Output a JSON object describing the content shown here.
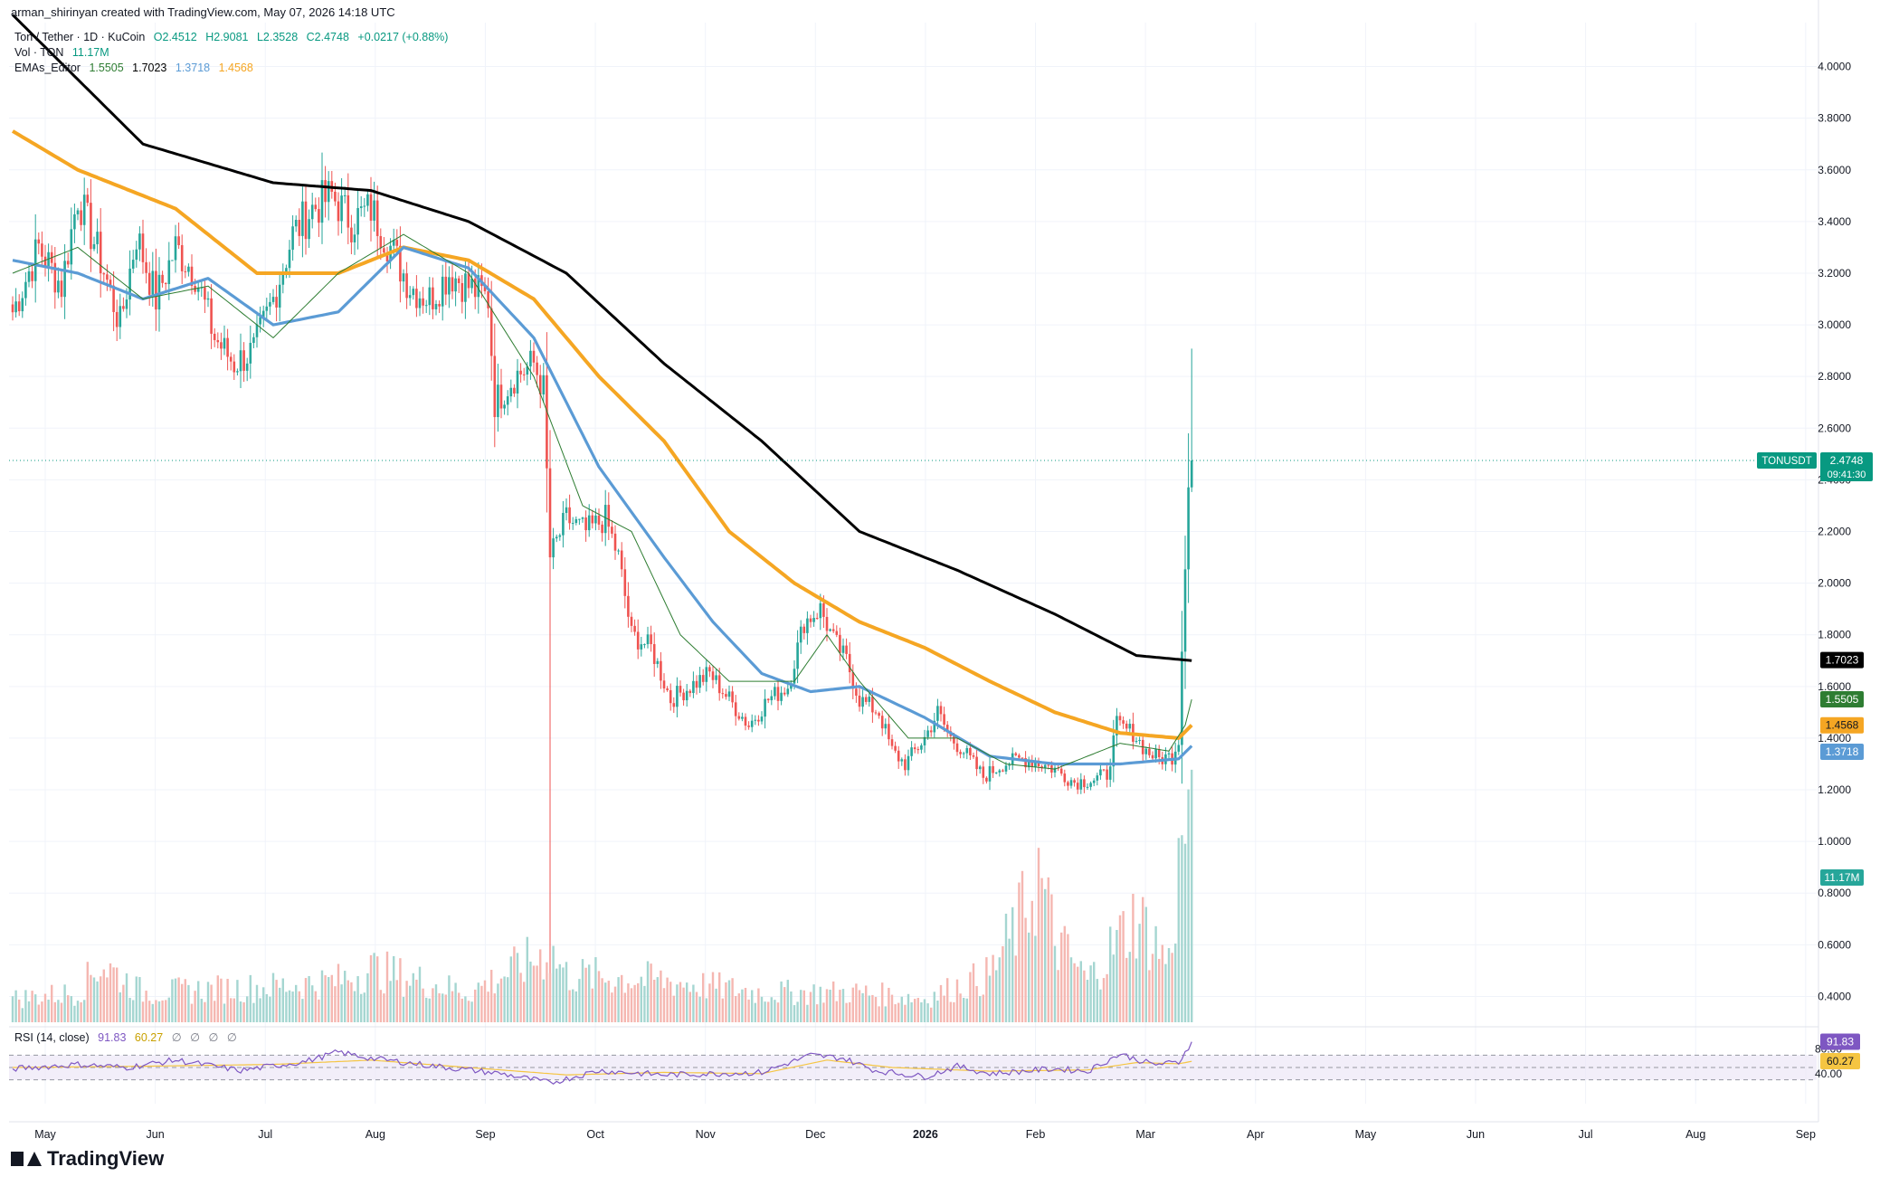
{
  "header": {
    "credit": "arman_shirinyan created with TradingView.com, May 07, 2026 14:18 UTC"
  },
  "legend": {
    "symbol": "Ton / Tether · 1D · KuCoin",
    "ohlc": {
      "o": "O2.4512",
      "h": "H2.9081",
      "l": "L2.3528",
      "c": "C2.4748",
      "chg": "+0.0217 (+0.88%)"
    },
    "vol_label": "Vol · TON",
    "vol_value": "11.17M",
    "emas_label": "EMAs_Editor",
    "ema_values": [
      "1.5505",
      "1.7023",
      "1.3718",
      "1.4568"
    ]
  },
  "rsi_legend": {
    "label": "RSI (14, close)",
    "value": "91.83",
    "ma_value": "60.27",
    "placeholders": [
      "∅",
      "∅",
      "∅",
      "∅"
    ]
  },
  "brand": "TradingView",
  "colors": {
    "up": "#26a69a",
    "down": "#ef5350",
    "ema_fast": "#2e7d32",
    "ema_mid": "#5b9bd5",
    "ema_slow": "#f5a623",
    "ema_long": "#000000",
    "rsi": "#7e57c2",
    "rsi_ma": "#f5c542",
    "vol_up": "#a5d6d1",
    "vol_down": "#f5b7b1"
  },
  "chart_data": {
    "type": "candlestick",
    "title": "Ton / Tether · 1D · KuCoin",
    "yaxis": {
      "ticks": [
        "4.0000",
        "3.8000",
        "3.6000",
        "3.4000",
        "3.2000",
        "3.0000",
        "2.8000",
        "2.6000",
        "2.4000",
        "2.2000",
        "2.0000",
        "1.8000",
        "1.6000",
        "1.4000",
        "1.2000",
        "1.0000",
        "0.8000",
        "0.6000",
        "0.4000"
      ],
      "range": [
        0.3,
        4.1
      ]
    },
    "xaxis": {
      "ticks": [
        "May",
        "Jun",
        "Jul",
        "Aug",
        "Sep",
        "Oct",
        "Nov",
        "Dec",
        "2026",
        "Feb",
        "Mar",
        "Apr",
        "May",
        "Jun",
        "Jul",
        "Aug",
        "Sep"
      ]
    },
    "price_markers": [
      {
        "label": "TONUSDT",
        "value": "2.4748",
        "sub": "09:41:30",
        "color": "#089981"
      },
      {
        "value": "1.7023",
        "color": "#000000"
      },
      {
        "value": "1.5505",
        "color": "#2e7d32"
      },
      {
        "value": "1.4568",
        "color": "#f5a623"
      },
      {
        "value": "1.3718",
        "color": "#5b9bd5"
      },
      {
        "value": "11.17M",
        "color": "#26a69a"
      }
    ],
    "rsi_axis": {
      "ticks": [
        "80.00",
        "40.00"
      ],
      "markers": [
        {
          "value": "91.83",
          "color": "#7e57c2"
        },
        {
          "value": "60.27",
          "color": "#f5c542"
        }
      ],
      "bands": [
        70,
        50,
        30
      ]
    },
    "price_anchors": [
      [
        0,
        3.05
      ],
      [
        8,
        3.3
      ],
      [
        15,
        3.15
      ],
      [
        20,
        3.5
      ],
      [
        27,
        3.25
      ],
      [
        33,
        3.0
      ],
      [
        38,
        3.35
      ],
      [
        44,
        3.1
      ],
      [
        50,
        3.3
      ],
      [
        56,
        3.2
      ],
      [
        62,
        2.95
      ],
      [
        68,
        2.85
      ],
      [
        74,
        2.9
      ],
      [
        80,
        3.1
      ],
      [
        86,
        3.35
      ],
      [
        92,
        3.45
      ],
      [
        98,
        3.5
      ],
      [
        104,
        3.4
      ],
      [
        110,
        3.45
      ],
      [
        116,
        3.3
      ],
      [
        122,
        3.15
      ],
      [
        128,
        3.1
      ],
      [
        134,
        3.2
      ],
      [
        140,
        3.15
      ],
      [
        146,
        3.1
      ],
      [
        148,
        2.7
      ],
      [
        154,
        2.8
      ],
      [
        160,
        2.85
      ],
      [
        163,
        2.75
      ],
      [
        165,
        2.1
      ],
      [
        170,
        2.25
      ],
      [
        176,
        2.2
      ],
      [
        182,
        2.25
      ],
      [
        186,
        2.1
      ],
      [
        190,
        1.8
      ],
      [
        196,
        1.75
      ],
      [
        202,
        1.55
      ],
      [
        208,
        1.6
      ],
      [
        214,
        1.65
      ],
      [
        220,
        1.55
      ],
      [
        226,
        1.45
      ],
      [
        232,
        1.55
      ],
      [
        238,
        1.6
      ],
      [
        243,
        1.85
      ],
      [
        248,
        1.9
      ],
      [
        252,
        1.78
      ],
      [
        256,
        1.7
      ],
      [
        260,
        1.55
      ],
      [
        266,
        1.5
      ],
      [
        270,
        1.35
      ],
      [
        274,
        1.3
      ],
      [
        280,
        1.4
      ],
      [
        284,
        1.5
      ],
      [
        288,
        1.4
      ],
      [
        292,
        1.35
      ],
      [
        298,
        1.25
      ],
      [
        304,
        1.3
      ],
      [
        310,
        1.32
      ],
      [
        316,
        1.3
      ],
      [
        320,
        1.28
      ],
      [
        326,
        1.23
      ],
      [
        332,
        1.24
      ],
      [
        336,
        1.26
      ],
      [
        339,
        1.45
      ],
      [
        344,
        1.42
      ],
      [
        348,
        1.35
      ],
      [
        352,
        1.32
      ],
      [
        356,
        1.33
      ],
      [
        358,
        1.4
      ],
      [
        359,
        1.75
      ],
      [
        360,
        2.1
      ],
      [
        361,
        2.4
      ],
      [
        362,
        2.47
      ]
    ],
    "ema_lines": {
      "ema_long": [
        [
          0,
          4.2
        ],
        [
          40,
          3.7
        ],
        [
          80,
          3.55
        ],
        [
          110,
          3.52
        ],
        [
          140,
          3.4
        ],
        [
          170,
          3.2
        ],
        [
          200,
          2.85
        ],
        [
          230,
          2.55
        ],
        [
          260,
          2.2
        ],
        [
          290,
          2.05
        ],
        [
          320,
          1.88
        ],
        [
          345,
          1.72
        ],
        [
          362,
          1.7
        ]
      ],
      "ema_slow": [
        [
          0,
          3.75
        ],
        [
          20,
          3.6
        ],
        [
          50,
          3.45
        ],
        [
          75,
          3.2
        ],
        [
          100,
          3.2
        ],
        [
          120,
          3.3
        ],
        [
          140,
          3.25
        ],
        [
          160,
          3.1
        ],
        [
          180,
          2.8
        ],
        [
          200,
          2.55
        ],
        [
          220,
          2.2
        ],
        [
          240,
          2.0
        ],
        [
          260,
          1.85
        ],
        [
          280,
          1.75
        ],
        [
          300,
          1.62
        ],
        [
          320,
          1.5
        ],
        [
          340,
          1.42
        ],
        [
          358,
          1.4
        ],
        [
          362,
          1.45
        ]
      ],
      "ema_mid": [
        [
          0,
          3.25
        ],
        [
          20,
          3.2
        ],
        [
          40,
          3.1
        ],
        [
          60,
          3.18
        ],
        [
          80,
          3.0
        ],
        [
          100,
          3.05
        ],
        [
          120,
          3.3
        ],
        [
          140,
          3.22
        ],
        [
          160,
          2.95
        ],
        [
          180,
          2.45
        ],
        [
          200,
          2.1
        ],
        [
          215,
          1.85
        ],
        [
          230,
          1.65
        ],
        [
          245,
          1.58
        ],
        [
          260,
          1.6
        ],
        [
          280,
          1.48
        ],
        [
          300,
          1.33
        ],
        [
          320,
          1.3
        ],
        [
          340,
          1.3
        ],
        [
          358,
          1.32
        ],
        [
          362,
          1.37
        ]
      ],
      "ema_fast": [
        [
          0,
          3.2
        ],
        [
          20,
          3.3
        ],
        [
          40,
          3.1
        ],
        [
          60,
          3.15
        ],
        [
          80,
          2.95
        ],
        [
          100,
          3.2
        ],
        [
          120,
          3.35
        ],
        [
          140,
          3.2
        ],
        [
          160,
          2.8
        ],
        [
          175,
          2.3
        ],
        [
          190,
          2.2
        ],
        [
          205,
          1.8
        ],
        [
          220,
          1.62
        ],
        [
          240,
          1.62
        ],
        [
          250,
          1.8
        ],
        [
          260,
          1.62
        ],
        [
          275,
          1.4
        ],
        [
          290,
          1.4
        ],
        [
          305,
          1.3
        ],
        [
          320,
          1.28
        ],
        [
          340,
          1.38
        ],
        [
          355,
          1.35
        ],
        [
          360,
          1.45
        ],
        [
          362,
          1.55
        ]
      ]
    },
    "volume_profile": [
      [
        0,
        0.04
      ],
      [
        20,
        0.05
      ],
      [
        27,
        0.1
      ],
      [
        40,
        0.05
      ],
      [
        80,
        0.06
      ],
      [
        100,
        0.07
      ],
      [
        110,
        0.09
      ],
      [
        140,
        0.05
      ],
      [
        165,
        0.12
      ],
      [
        170,
        0.08
      ],
      [
        200,
        0.07
      ],
      [
        230,
        0.05
      ],
      [
        260,
        0.05
      ],
      [
        280,
        0.04
      ],
      [
        300,
        0.08
      ],
      [
        310,
        0.18
      ],
      [
        315,
        0.25
      ],
      [
        320,
        0.14
      ],
      [
        330,
        0.07
      ],
      [
        345,
        0.18
      ],
      [
        350,
        0.14
      ],
      [
        355,
        0.1
      ],
      [
        360,
        0.35
      ],
      [
        362,
        0.3
      ]
    ],
    "rsi_anchors": [
      [
        0,
        48
      ],
      [
        20,
        55
      ],
      [
        35,
        50
      ],
      [
        50,
        62
      ],
      [
        70,
        45
      ],
      [
        90,
        60
      ],
      [
        100,
        75
      ],
      [
        110,
        65
      ],
      [
        130,
        52
      ],
      [
        150,
        40
      ],
      [
        165,
        25
      ],
      [
        180,
        45
      ],
      [
        200,
        38
      ],
      [
        230,
        42
      ],
      [
        245,
        70
      ],
      [
        255,
        65
      ],
      [
        265,
        45
      ],
      [
        280,
        35
      ],
      [
        290,
        52
      ],
      [
        300,
        40
      ],
      [
        320,
        48
      ],
      [
        330,
        44
      ],
      [
        340,
        72
      ],
      [
        350,
        55
      ],
      [
        358,
        58
      ],
      [
        362,
        92
      ]
    ],
    "rsi_ma_anchors": [
      [
        0,
        50
      ],
      [
        40,
        52
      ],
      [
        80,
        55
      ],
      [
        110,
        62
      ],
      [
        140,
        50
      ],
      [
        170,
        38
      ],
      [
        200,
        42
      ],
      [
        230,
        40
      ],
      [
        250,
        62
      ],
      [
        270,
        50
      ],
      [
        300,
        44
      ],
      [
        330,
        46
      ],
      [
        345,
        58
      ],
      [
        358,
        56
      ],
      [
        362,
        60
      ]
    ]
  }
}
